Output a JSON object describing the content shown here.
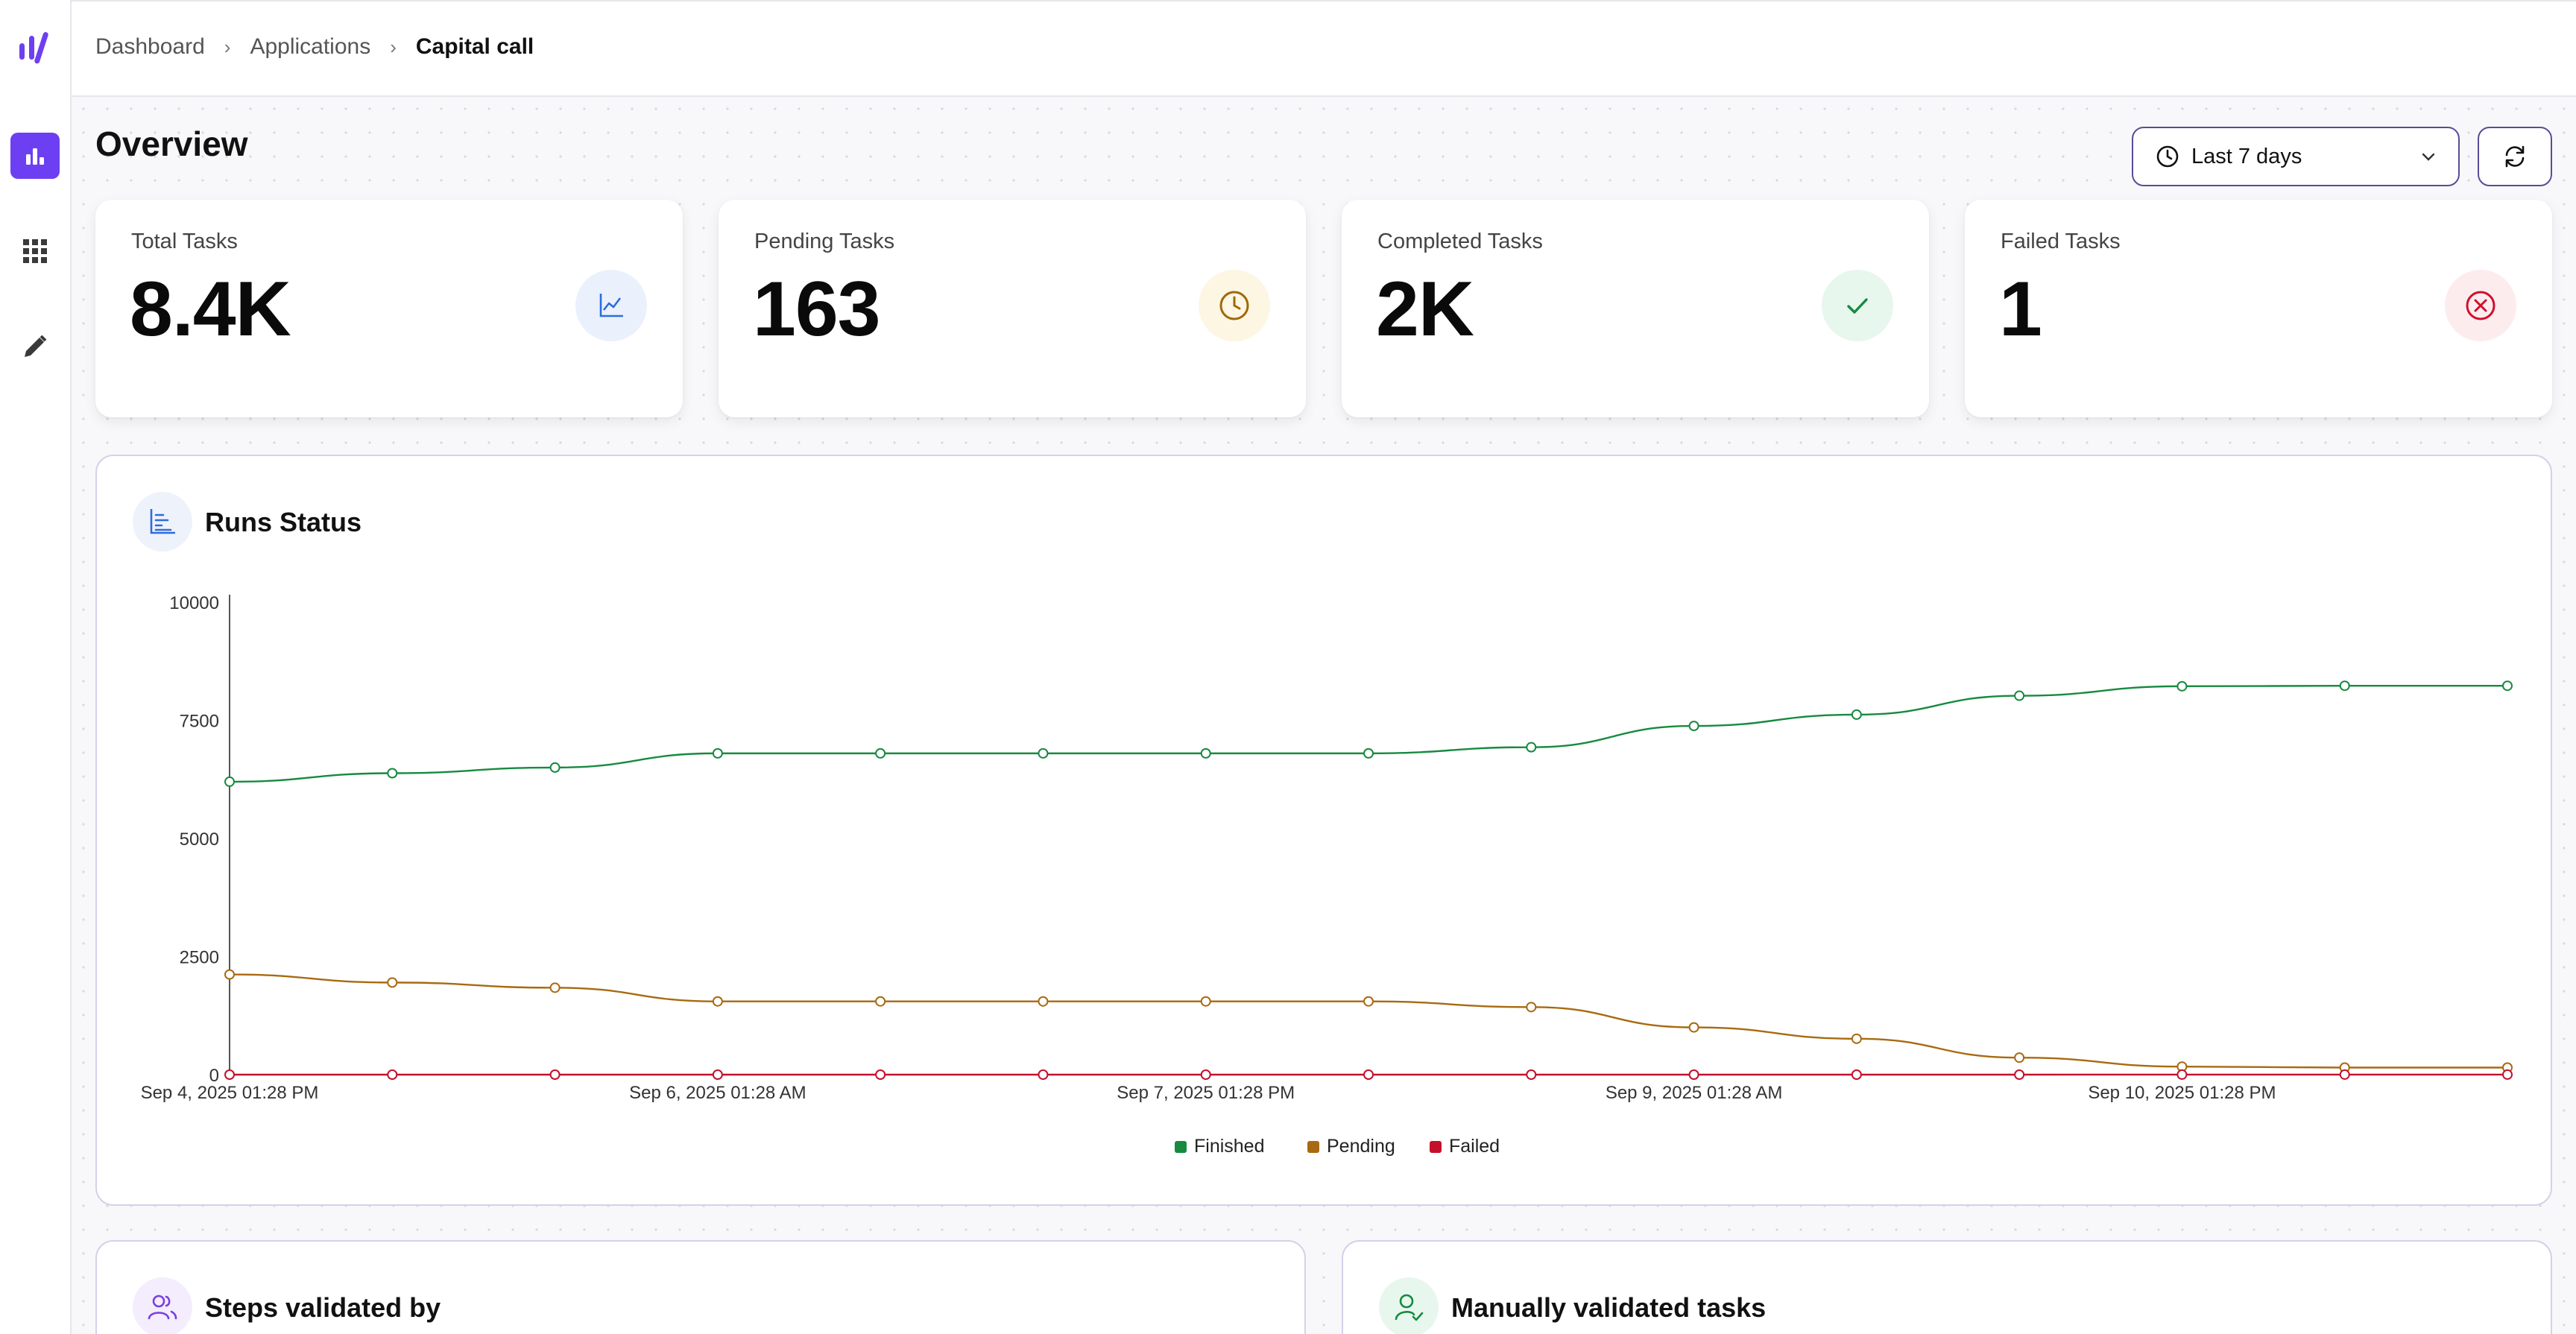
{
  "breadcrumb": [
    "Dashboard",
    "Applications",
    "Capital call"
  ],
  "page_title": "Overview",
  "time_range": {
    "label": "Last 7 days"
  },
  "cards": [
    {
      "label": "Total Tasks",
      "value": "8.4K",
      "icon": "line-chart-icon",
      "color": "#2d6cdf",
      "bg": "#eaf1fd"
    },
    {
      "label": "Pending Tasks",
      "value": "163",
      "icon": "clock-icon",
      "color": "#a0680a",
      "bg": "#fdf6e3"
    },
    {
      "label": "Completed Tasks",
      "value": "2K",
      "icon": "check-icon",
      "color": "#168a42",
      "bg": "#e8f7ed"
    },
    {
      "label": "Failed Tasks",
      "value": "1",
      "icon": "x-circle-icon",
      "color": "#d0102d",
      "bg": "#fdecee"
    }
  ],
  "runs_panel": {
    "title": "Runs Status"
  },
  "steps_panel": {
    "title": "Steps validated by"
  },
  "manual_panel": {
    "title": "Manually validated tasks"
  },
  "chart_data": {
    "type": "line",
    "ylim": [
      0,
      10000
    ],
    "yticks": [
      0,
      2500,
      5000,
      7500,
      10000
    ],
    "x_tick_labels": [
      {
        "index": 0,
        "label": "Sep 4, 2025 01:28 PM"
      },
      {
        "index": 3,
        "label": "Sep 6, 2025 01:28 AM"
      },
      {
        "index": 6,
        "label": "Sep 7, 2025 01:28 PM"
      },
      {
        "index": 9,
        "label": "Sep 9, 2025 01:28 AM"
      },
      {
        "index": 12,
        "label": "Sep 10, 2025 01:28 PM"
      }
    ],
    "series": [
      {
        "name": "Finished",
        "color": "#178a40",
        "values": [
          6200,
          6380,
          6500,
          6800,
          6800,
          6800,
          6800,
          6800,
          6930,
          7380,
          7620,
          8020,
          8220,
          8230,
          8230
        ]
      },
      {
        "name": "Pending",
        "color": "#a86a10",
        "values": [
          2120,
          1950,
          1840,
          1550,
          1550,
          1550,
          1550,
          1550,
          1430,
          1000,
          760,
          360,
          170,
          150,
          150
        ]
      },
      {
        "name": "Failed",
        "color": "#c4102a",
        "values": [
          0,
          0,
          0,
          0,
          0,
          0,
          0,
          0,
          0,
          0,
          0,
          0,
          1,
          1,
          1
        ]
      }
    ],
    "legend_position": "bottom-center",
    "grid": false
  }
}
